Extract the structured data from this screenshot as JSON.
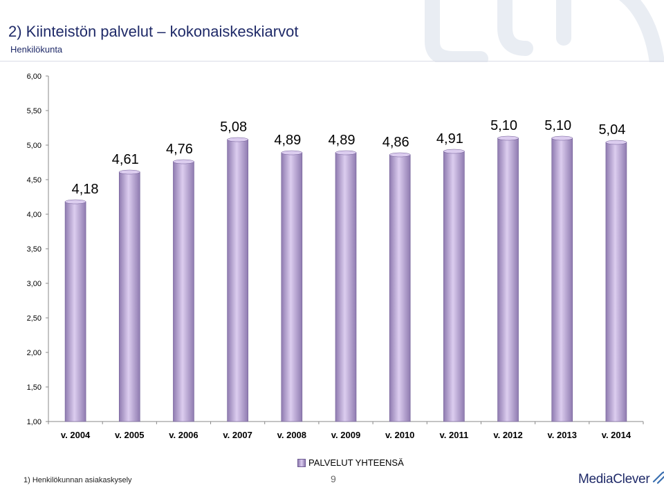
{
  "header": {
    "title": "2) Kiinteistön palvelut – kokonaiskeskiarvot",
    "subtitle": "Henkilökunta"
  },
  "chart_data": {
    "type": "bar",
    "categories": [
      "v. 2004",
      "v. 2005",
      "v. 2006",
      "v. 2007",
      "v. 2008",
      "v. 2009",
      "v. 2010",
      "v. 2011",
      "v. 2012",
      "v. 2013",
      "v. 2014"
    ],
    "series": [
      {
        "name": "PALVELUT YHTEENSÄ",
        "values": [
          4.18,
          4.61,
          4.76,
          5.08,
          4.89,
          4.89,
          4.86,
          4.91,
          5.1,
          5.1,
          5.04
        ],
        "labels": [
          "4,18",
          "4,61",
          "4,76",
          "5,08",
          "4,89",
          "4,89",
          "4,86",
          "4,91",
          "5,10",
          "5,10",
          "5,04"
        ]
      }
    ],
    "ylim": [
      1,
      6
    ],
    "yticks": [
      1,
      1.5,
      2,
      2.5,
      3,
      3.5,
      4,
      4.5,
      5,
      5.5,
      6
    ],
    "ytick_labels": [
      "1,00",
      "1,50",
      "2,00",
      "2,50",
      "3,00",
      "3,50",
      "4,00",
      "4,50",
      "5,00",
      "5,50",
      "6,00"
    ],
    "grid": false,
    "legend_position": "bottom",
    "colors": {
      "bar_light": "#dccdef",
      "bar_dark": "#8f7bb0",
      "bar_edge": "#6f5c95"
    }
  },
  "legend": {
    "label": "PALVELUT YHTEENSÄ"
  },
  "footer": {
    "footnote": "1) Henkilökunnan asiakaskysely",
    "page_number": "9",
    "logo_text": "MediaClever"
  },
  "colors": {
    "title": "#1f2a68",
    "decor": "#e9edf3"
  }
}
